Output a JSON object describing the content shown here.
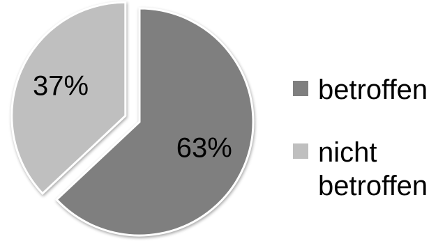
{
  "chart_data": {
    "type": "pie",
    "title": "",
    "slices": [
      {
        "label": "betroffen",
        "value": 63,
        "display": "63%",
        "color": "#7f7f7f",
        "exploded": false
      },
      {
        "label": "nicht betroffen",
        "value": 37,
        "display": "37%",
        "color": "#bfbfbf",
        "exploded": true
      }
    ],
    "legend_placement": "right"
  },
  "legend": {
    "items": [
      {
        "label": "betroffen",
        "color": "#7f7f7f"
      },
      {
        "label": "nicht betroffen",
        "color": "#bfbfbf"
      }
    ]
  }
}
